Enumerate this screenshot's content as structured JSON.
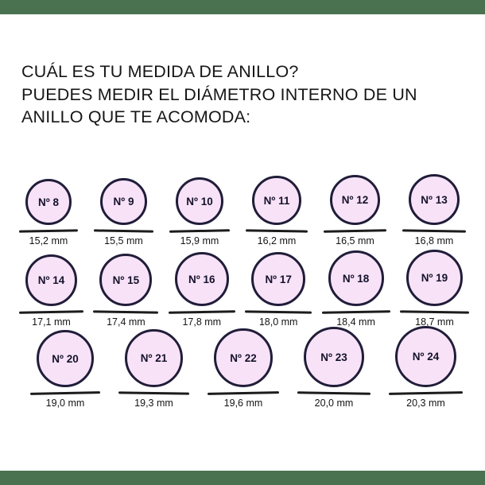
{
  "page": {
    "background": "#ffffff",
    "accent_bar_color": "#4a7150"
  },
  "title": {
    "lines": [
      "CUÁL ES TU MEDIDA DE ANILLO?",
      "PUEDES MEDIR EL DIÁMETRO INTERNO DE UN",
      "ANILLO QUE TE ACOMODA:"
    ]
  },
  "rings": {
    "circle_fill": "#f8e2f7",
    "circle_border": "#201d3a",
    "unit": "mm",
    "rows": [
      {
        "items": [
          {
            "number_label": "Nº 8",
            "diameter_mm": 15.2,
            "diameter_label": "15,2 mm"
          },
          {
            "number_label": "Nº 9",
            "diameter_mm": 15.5,
            "diameter_label": "15,5 mm"
          },
          {
            "number_label": "Nº 10",
            "diameter_mm": 15.9,
            "diameter_label": "15,9 mm"
          },
          {
            "number_label": "Nº 11",
            "diameter_mm": 16.2,
            "diameter_label": "16,2 mm"
          },
          {
            "number_label": "Nº 12",
            "diameter_mm": 16.5,
            "diameter_label": "16,5 mm"
          },
          {
            "number_label": "Nº 13",
            "diameter_mm": 16.8,
            "diameter_label": "16,8 mm"
          }
        ]
      },
      {
        "items": [
          {
            "number_label": "Nº 14",
            "diameter_mm": 17.1,
            "diameter_label": "17,1 mm"
          },
          {
            "number_label": "Nº 15",
            "diameter_mm": 17.4,
            "diameter_label": "17,4 mm"
          },
          {
            "number_label": "Nº 16",
            "diameter_mm": 17.8,
            "diameter_label": "17,8 mm"
          },
          {
            "number_label": "Nº 17",
            "diameter_mm": 18.0,
            "diameter_label": "18,0 mm"
          },
          {
            "number_label": "Nº 18",
            "diameter_mm": 18.4,
            "diameter_label": "18,4 mm"
          },
          {
            "number_label": "Nº 19",
            "diameter_mm": 18.7,
            "diameter_label": "18,7 mm"
          }
        ]
      },
      {
        "items": [
          {
            "number_label": "Nº 20",
            "diameter_mm": 19.0,
            "diameter_label": "19,0 mm"
          },
          {
            "number_label": "Nº 21",
            "diameter_mm": 19.3,
            "diameter_label": "19,3 mm"
          },
          {
            "number_label": "Nº 22",
            "diameter_mm": 19.6,
            "diameter_label": "19,6 mm"
          },
          {
            "number_label": "Nº 23",
            "diameter_mm": 20.0,
            "diameter_label": "20,0 mm"
          },
          {
            "number_label": "Nº 24",
            "diameter_mm": 20.3,
            "diameter_label": "20,3 mm"
          }
        ]
      }
    ]
  }
}
